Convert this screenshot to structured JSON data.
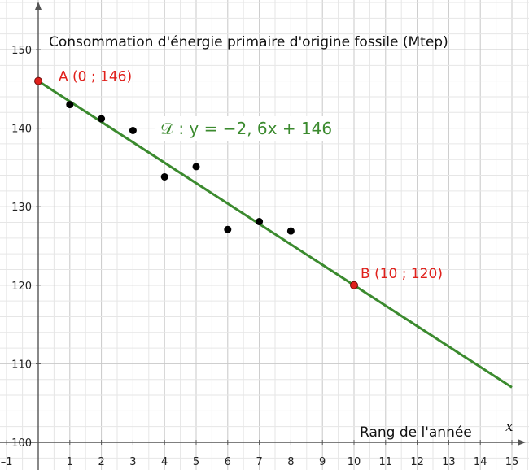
{
  "chart_data": {
    "type": "scatter",
    "ylabel": "Consommation d'énergie primaire d'origine fossile (Mtep)",
    "xlabel": "Rang de l'année",
    "x_variable": "x",
    "xlim": [
      -1,
      15
    ],
    "ylim": [
      100,
      150
    ],
    "x_ticks": [
      "–1",
      "1",
      "2",
      "3",
      "4",
      "5",
      "6",
      "7",
      "8",
      "9",
      "10",
      "11",
      "12",
      "13",
      "14",
      "15"
    ],
    "y_ticks": [
      "100",
      "110",
      "120",
      "130",
      "140",
      "150"
    ],
    "grid": true,
    "points": [
      {
        "x": 1,
        "y": 143
      },
      {
        "x": 2,
        "y": 141.2
      },
      {
        "x": 3,
        "y": 139.7
      },
      {
        "x": 4,
        "y": 133.8
      },
      {
        "x": 5,
        "y": 135.1
      },
      {
        "x": 6,
        "y": 127.1
      },
      {
        "x": 7,
        "y": 128.1
      },
      {
        "x": 8,
        "y": 126.9
      }
    ],
    "line": {
      "label": "𝒟 : y = −2, 6x + 146",
      "slope": -2.6,
      "intercept": 146,
      "x_range": [
        0,
        15
      ]
    },
    "marked_points": [
      {
        "x": 0,
        "y": 146,
        "label": "A (0 ; 146)"
      },
      {
        "x": 10,
        "y": 120,
        "label": "B (10 ; 120)"
      }
    ],
    "colors": {
      "points": "#000000",
      "line": "#3b8a2e",
      "marked": "#e0201b",
      "grid_major": "#c8c8c8",
      "grid_minor": "#e6e6e6",
      "axis": "#555555"
    }
  }
}
